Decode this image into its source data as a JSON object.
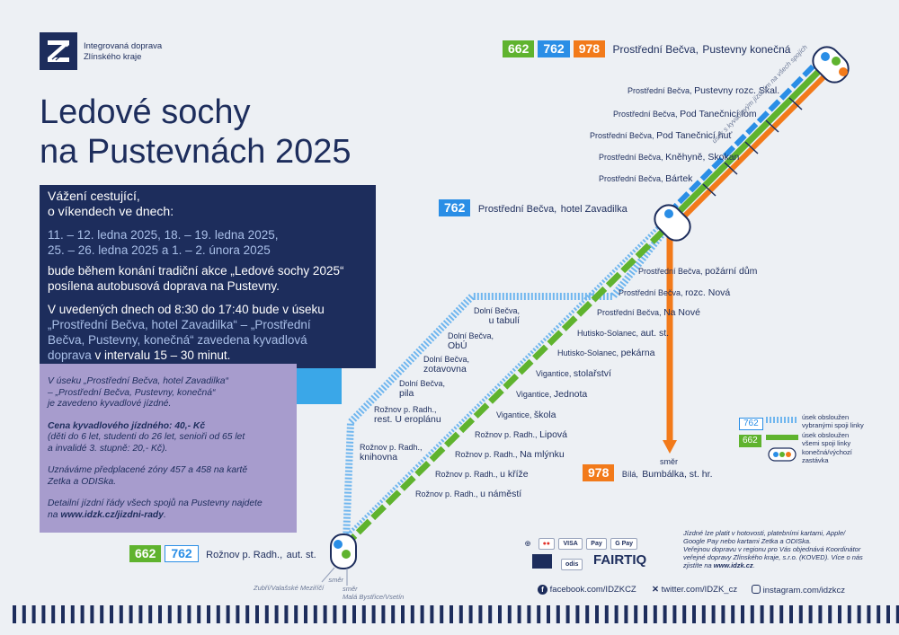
{
  "header": {
    "logo_line1": "Integrovaná doprava",
    "logo_line2": "Zlínského kraje",
    "title_line1": "Ledové sochy",
    "title_line2": "na Pustevnách 2025"
  },
  "notice": {
    "greet1": "Vážení cestující,",
    "greet2": "o víkendech ve dnech:",
    "dates1": "11. – 12. ledna 2025, 18. – 19. ledna 2025,",
    "dates2": "25. – 26. ledna 2025 a 1. – 2. února 2025",
    "para1_line1": "bude během konání tradiční akce „Ledové sochy 2025“",
    "para1_line2": "posílena autobusová doprava na Pustevny.",
    "para2_line1": "V uvedených dnech od 8:30 do 17:40 bude v úseku",
    "para2_line2": "„Prostřední Bečva, hotel Zavadilka“ – „Prostřední",
    "para2_line3": "Bečva, Pustevny, konečná“ zavedena kyvadlová",
    "para2_line4a": "doprava",
    "para2_line4b": " v intervalu 15 – 30 minut."
  },
  "info": {
    "p1_line1": "V úseku „Prostřední Bečva, hotel Zavadilka“",
    "p1_line2": "– „Prostřední Bečva, Pustevny, konečná“",
    "p1_line3": "je zavedeno kyvadlové jízdné.",
    "p2_line1": "Cena kyvadlového jízdného: 40,- Kč",
    "p2_line2": "(děti do 6 let, studenti do 26 let, senioři od 65 let",
    "p2_line3": "a invalidé 3. stupně: 20,- Kč).",
    "p3_line1": "Uznáváme předplacené zóny 457 a 458 na kartě",
    "p3_line2": "Zetka a ODISka.",
    "p4_line1": "Detailní jízdní řády všech spojů na Pustevny najdete",
    "p4_line2a": "na ",
    "p4_line2b": "www.idzk.cz/jizdni-rady",
    "p4_line2c": "."
  },
  "map": {
    "top_terminal": {
      "lines": [
        "662",
        "762",
        "978"
      ],
      "prefix": "Prostřední Bečva,",
      "name": "Pustevny konečná"
    },
    "zavadilka": {
      "line": "762",
      "prefix": "Prostřední Bečva,",
      "name": "hotel Zavadilka"
    },
    "bottom_terminal": {
      "lines": [
        "662",
        "762"
      ],
      "prefix": "Rožnov p. Radh.,",
      "name": "aut. st."
    },
    "orange_terminal": {
      "line": "978",
      "prefix": "Bílá,",
      "name": "Bumbálka, st. hr.",
      "dir": "směr"
    },
    "shuttle_note": "úsek s kyvadlovým jízdným na všech spojích",
    "upper_stops": [
      {
        "prefix": "Prostřední Bečva,",
        "name": "Pustevny rozc. Skal."
      },
      {
        "prefix": "Prostřední Bečva,",
        "name": "Pod Tanečnicí lom"
      },
      {
        "prefix": "Prostřední Bečva,",
        "name": "Pod Tanečnicí huť"
      },
      {
        "prefix": "Prostřední Bečva,",
        "name": "Kněhyně, Skokan"
      },
      {
        "prefix": "Prostřední Bečva,",
        "name": "Bártek"
      }
    ],
    "right_stops": [
      {
        "prefix": "Prostřední Bečva,",
        "name": "požární dům"
      },
      {
        "prefix": "Prostřední Bečva,",
        "name": "rozc. Nová"
      },
      {
        "prefix": "Prostřední Bečva,",
        "name": "Na Nové"
      },
      {
        "prefix": "Hutisko-Solanec,",
        "name": "aut. st."
      },
      {
        "prefix": "Hutisko-Solanec,",
        "name": "pekárna"
      },
      {
        "prefix": "Vigantice,",
        "name": "stolařství"
      },
      {
        "prefix": "Vigantice,",
        "name": "Jednota"
      },
      {
        "prefix": "Vigantice,",
        "name": "škola"
      },
      {
        "prefix": "Rožnov p. Radh.,",
        "name": "Lipová"
      },
      {
        "prefix": "Rožnov p. Radh.,",
        "name": "Na mlýnku"
      },
      {
        "prefix": "Rožnov p. Radh.,",
        "name": "u kříže"
      },
      {
        "prefix": "Rožnov p. Radh.,",
        "name": "u náměstí"
      }
    ],
    "left_stops": [
      {
        "prefix": "Dolní Bečva,",
        "name": "u tabulí"
      },
      {
        "prefix": "Dolní Bečva,",
        "name": "ObÚ"
      },
      {
        "prefix": "Dolní Bečva,",
        "name": "zotavovna"
      },
      {
        "prefix": "Dolní Bečva,",
        "name": "pila"
      },
      {
        "prefix": "Rožnov p. Radh.,",
        "name": "rest. U eroplánu"
      },
      {
        "prefix": "Rožnov p. Radh.,",
        "name": "knihovna"
      }
    ],
    "dir_left": {
      "label": "směr",
      "name": "Zubří/Valašské Meziříčí"
    },
    "dir_right": {
      "label": "směr",
      "name": "Malá Bystřice/Vsetín"
    }
  },
  "legend": {
    "blue_line": "762",
    "blue_text1": "úsek obsloužen",
    "blue_text2": "vybranými spoji linky",
    "green_line": "662",
    "green_text1": "úsek obsloužen",
    "green_text2": "všemi spoji linky",
    "stop_text1": "konečná/výchozí",
    "stop_text2": "zastávka"
  },
  "payment": {
    "icons": [
      "VISA",
      "Pay",
      "G Pay"
    ],
    "text1": "Jízdné lze platit v hotovosti, platebními kartami, Apple/",
    "text2": "Google Pay nebo kartami Zetka a ODISka.",
    "text3": "Veřejnou dopravu v regionu pro Vás objednává Koordinátor",
    "text4": "veřejné dopravy Zlínského kraje, s.r.o. (KOVED). Více o nás",
    "text5a": "zjistíte na ",
    "text5b": "www.idzk.cz",
    "text5c": ".",
    "fairtiq": "FAIRTIQ",
    "odis": "odis"
  },
  "social": {
    "facebook": "facebook.com/IDZKCZ",
    "twitter": "twitter.com/IDZK_cz",
    "instagram": "instagram.com/idzkcz"
  },
  "colors": {
    "navy": "#1d2d5c",
    "green": "#5fb32e",
    "blue": "#2a8ee6",
    "orange": "#f27a1a",
    "lavender": "#a79ccd",
    "sky": "#3aa7e8"
  }
}
